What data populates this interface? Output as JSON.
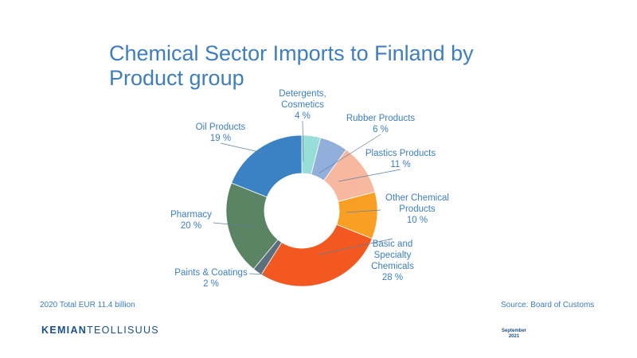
{
  "slide": {
    "title": "Chemical Sector Imports to Finland by Product group",
    "total_note": "2020 Total EUR 11.4 billion",
    "source": "Source: Board of Customs",
    "logo_bold": "KEMIAN",
    "logo_regular": "TEOLLISUUS",
    "date_month": "September",
    "date_year": "2021"
  },
  "chart_data": {
    "type": "pie",
    "variant": "donut",
    "title": "Chemical Sector Imports to Finland by Product group",
    "unit": "%",
    "slices": [
      {
        "label": "Detergents, Cosmetics",
        "label_lines": [
          "Detergents,",
          "Cosmetics"
        ],
        "value": 4,
        "value_text": "4 %",
        "color": "#96ded7"
      },
      {
        "label": "Rubber Products",
        "label_lines": [
          "Rubber Products"
        ],
        "value": 6,
        "value_text": "6 %",
        "color": "#92aedb"
      },
      {
        "label": "Plastics Products",
        "label_lines": [
          "Plastics Products"
        ],
        "value": 11,
        "value_text": "11 %",
        "color": "#f8b8a0"
      },
      {
        "label": "Other Chemical Products",
        "label_lines": [
          "Other Chemical",
          "Products"
        ],
        "value": 10,
        "value_text": "10 %",
        "color": "#f9a024"
      },
      {
        "label": "Basic and Specialty Chemicals",
        "label_lines": [
          "Basic and",
          "Specialty",
          "Chemicals"
        ],
        "value": 28,
        "value_text": "28 %",
        "color": "#f2581f"
      },
      {
        "label": "Paints & Coatings",
        "label_lines": [
          "Paints & Coatings"
        ],
        "value": 2,
        "value_text": "2 %",
        "color": "#5b6f7c"
      },
      {
        "label": "Pharmacy",
        "label_lines": [
          "Pharmacy"
        ],
        "value": 20,
        "value_text": "20 %",
        "color": "#5b8465"
      },
      {
        "label": "Oil Products",
        "label_lines": [
          "Oil Products"
        ],
        "value": 19,
        "value_text": "19 %",
        "color": "#3b82c5"
      }
    ]
  }
}
